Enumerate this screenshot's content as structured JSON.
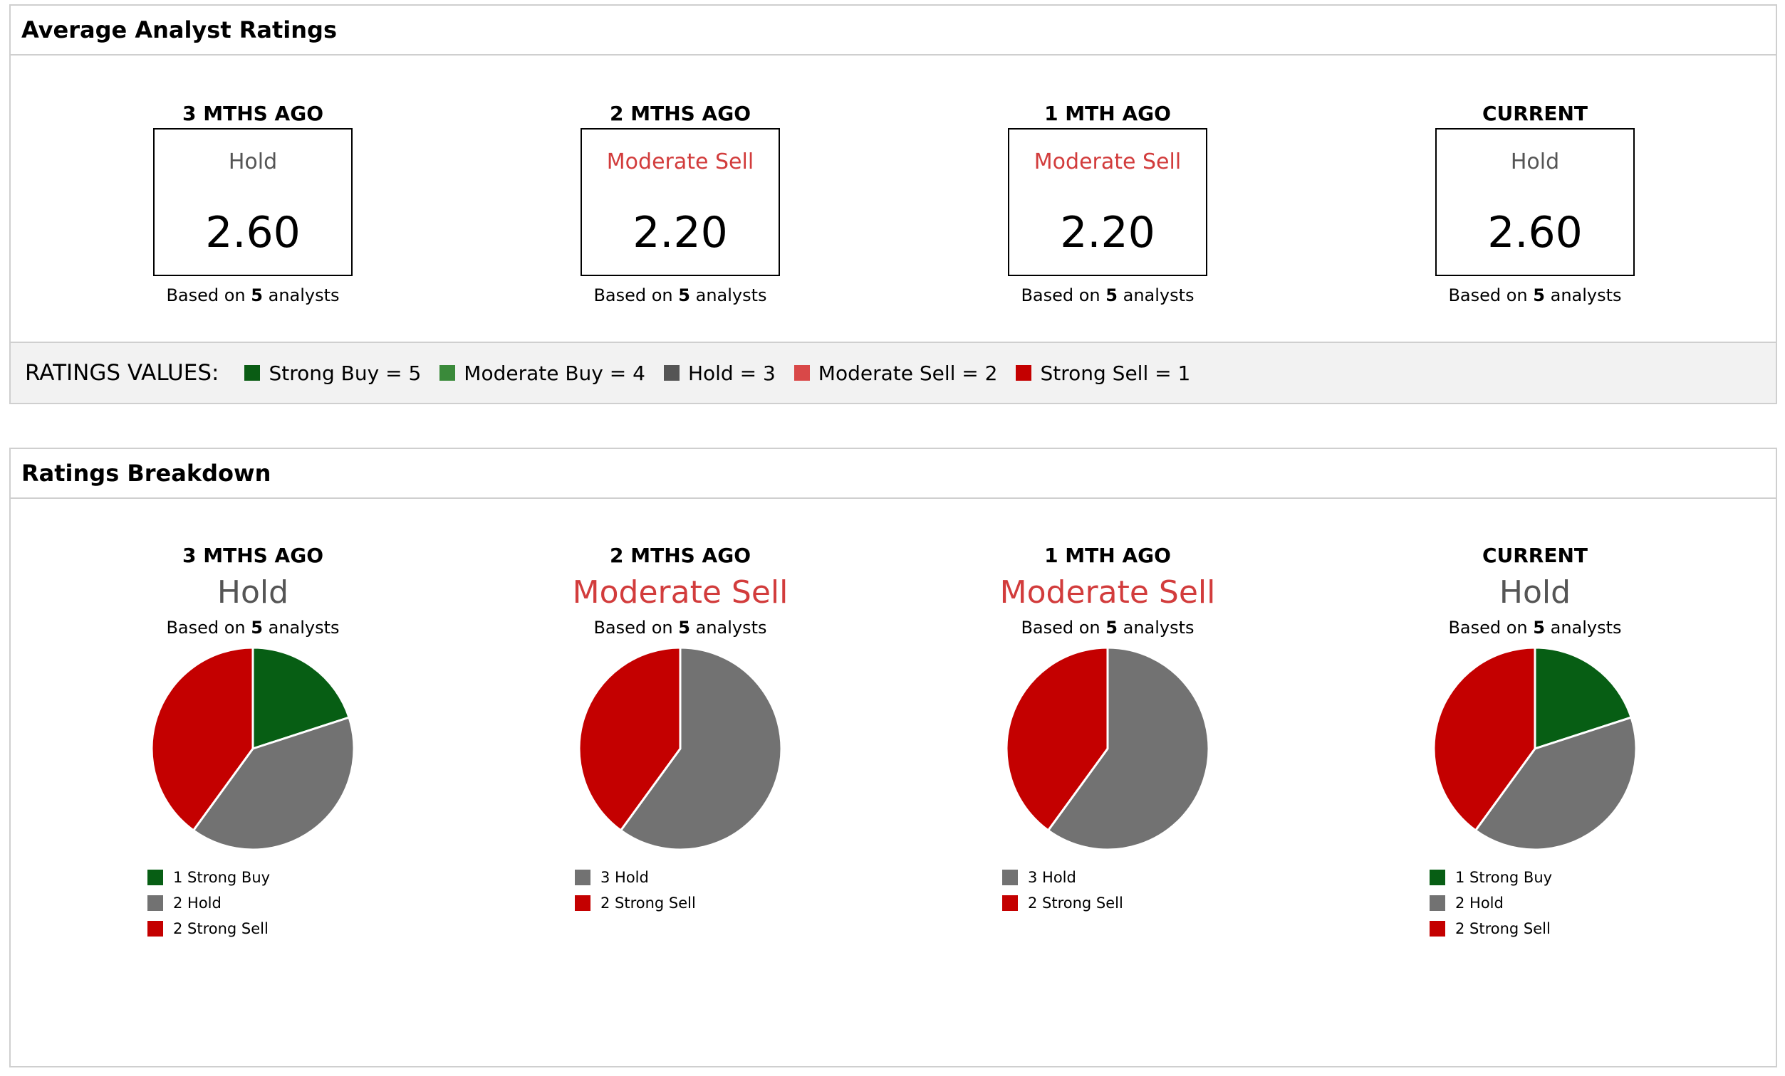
{
  "avg_panel": {
    "title": "Average Analyst Ratings",
    "columns": [
      {
        "label": "3 MTHS AGO",
        "rating": "Hold",
        "rating_color": "#555555",
        "value": "2.60",
        "based_prefix": "Based on",
        "count": "5",
        "based_suffix": "analysts"
      },
      {
        "label": "2 MTHS AGO",
        "rating": "Moderate Sell",
        "rating_color": "#d23c3c",
        "value": "2.20",
        "based_prefix": "Based on",
        "count": "5",
        "based_suffix": "analysts"
      },
      {
        "label": "1 MTH AGO",
        "rating": "Moderate Sell",
        "rating_color": "#d23c3c",
        "value": "2.20",
        "based_prefix": "Based on",
        "count": "5",
        "based_suffix": "analysts"
      },
      {
        "label": "CURRENT",
        "rating": "Hold",
        "rating_color": "#555555",
        "value": "2.60",
        "based_prefix": "Based on",
        "count": "5",
        "based_suffix": "analysts"
      }
    ],
    "legend": {
      "title": "RATINGS VALUES:",
      "items": [
        {
          "label": "Strong Buy = 5",
          "color": "#0a5c14"
        },
        {
          "label": "Moderate Buy = 4",
          "color": "#3a8a3a"
        },
        {
          "label": "Hold = 3",
          "color": "#555555"
        },
        {
          "label": "Moderate Sell = 2",
          "color": "#d94848"
        },
        {
          "label": "Strong Sell = 1",
          "color": "#c40000"
        }
      ]
    }
  },
  "breakdown_panel": {
    "title": "Ratings Breakdown"
  },
  "chart_data": [
    {
      "type": "pie",
      "title": "3 MTHS AGO",
      "rating": "Hold",
      "rating_color": "#555555",
      "based_prefix": "Based on",
      "count": "5",
      "based_suffix": "analysts",
      "slices": [
        {
          "label": "1 Strong Buy",
          "value": 1,
          "color": "#075e14"
        },
        {
          "label": "2 Hold",
          "value": 2,
          "color": "#727272"
        },
        {
          "label": "2 Strong Sell",
          "value": 2,
          "color": "#c40000"
        }
      ]
    },
    {
      "type": "pie",
      "title": "2 MTHS AGO",
      "rating": "Moderate Sell",
      "rating_color": "#d23c3c",
      "based_prefix": "Based on",
      "count": "5",
      "based_suffix": "analysts",
      "slices": [
        {
          "label": "3 Hold",
          "value": 3,
          "color": "#727272"
        },
        {
          "label": "2 Strong Sell",
          "value": 2,
          "color": "#c40000"
        }
      ]
    },
    {
      "type": "pie",
      "title": "1 MTH AGO",
      "rating": "Moderate Sell",
      "rating_color": "#d23c3c",
      "based_prefix": "Based on",
      "count": "5",
      "based_suffix": "analysts",
      "slices": [
        {
          "label": "3 Hold",
          "value": 3,
          "color": "#727272"
        },
        {
          "label": "2 Strong Sell",
          "value": 2,
          "color": "#c40000"
        }
      ]
    },
    {
      "type": "pie",
      "title": "CURRENT",
      "rating": "Hold",
      "rating_color": "#555555",
      "based_prefix": "Based on",
      "count": "5",
      "based_suffix": "analysts",
      "slices": [
        {
          "label": "1 Strong Buy",
          "value": 1,
          "color": "#075e14"
        },
        {
          "label": "2 Hold",
          "value": 2,
          "color": "#727272"
        },
        {
          "label": "2 Strong Sell",
          "value": 2,
          "color": "#c40000"
        }
      ]
    }
  ]
}
